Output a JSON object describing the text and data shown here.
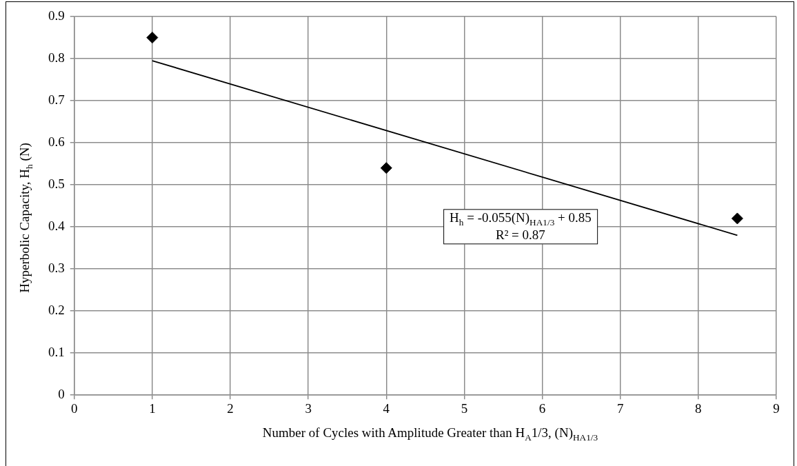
{
  "chart_data": {
    "type": "scatter",
    "xlabel": "Number of Cycles with Amplitude Greater than H$_{A}$1/3, (N)$_{HA1/3}$",
    "ylabel": "Hyperbolic Capacity, H$_{h}$ (N)",
    "x": [
      1,
      4,
      8.5
    ],
    "series": [
      {
        "color": "#000000",
        "values": [
          0.85,
          0.54,
          0.42
        ],
        "marker": "diamond"
      },
      {
        "type": "line",
        "color": "#000000",
        "x": [
          1,
          8.5
        ],
        "values": [
          0.795,
          0.38
        ],
        "marker": "none",
        "line_style": "solid"
      }
    ],
    "annotations": [
      "H$_{h}$ = -0.055(N)$_{HA1/3}$ + 0.85",
      "R² = 0.87"
    ],
    "xlim": [
      0,
      9
    ],
    "xticks": [
      0,
      1,
      2,
      3,
      4,
      5,
      6,
      7,
      8,
      9
    ],
    "ylim": [
      0,
      0.9
    ],
    "yticks": [
      0,
      0.1,
      0.2,
      0.3,
      0.4,
      0.5,
      0.6,
      0.7,
      0.8,
      0.9
    ],
    "grid": true,
    "legend": false
  }
}
